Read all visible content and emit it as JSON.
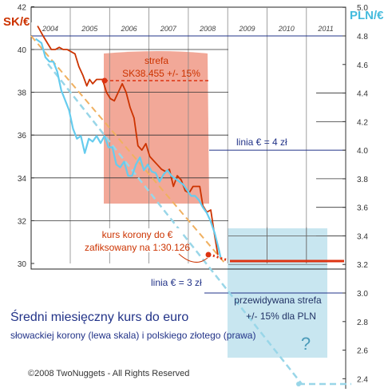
{
  "chart_data": {
    "type": "line",
    "title": "Średni miesięczny kurs do euro",
    "subtitle": "słowackiej korony (lewa skala) i polskiego złotego (prawa)",
    "copyright": "©2008 TwoNuggets - All Rights Reserved",
    "left_axis": {
      "label": "SK/€",
      "ticks": [
        30,
        32,
        34,
        36,
        38,
        40,
        42
      ],
      "range": [
        29,
        42
      ]
    },
    "right_axis": {
      "label": "PLN/€",
      "ticks": [
        2.4,
        2.6,
        2.8,
        3.0,
        3.2,
        3.4,
        3.6,
        3.8,
        4.0,
        4.2,
        4.4,
        4.6,
        4.8,
        5.0
      ],
      "range": [
        2.4,
        5.0
      ]
    },
    "x_axis": {
      "ticks": [
        "2004",
        "2005",
        "2006",
        "2007",
        "2008",
        "2009",
        "2010",
        "2011"
      ]
    },
    "annotations": {
      "strefa_title": "strefa",
      "strefa_value": "SK38.455  +/- 15%",
      "linia_4": "linia € = 4 zł",
      "linia_3": "linia € = 3 zł",
      "kurs_line1": "kurs korony do €",
      "kurs_line2": "zafiksowany na 1:30.126",
      "przew_line1": "przewidywana strefa",
      "przew_line2": "+/- 15% dla PLN",
      "question": "?"
    },
    "series": [
      {
        "axis": "left",
        "color": "#cc3300",
        "points": [
          [
            2003.8,
            41.1
          ],
          [
            2003.95,
            40.6
          ],
          [
            2004.05,
            40.3
          ],
          [
            2004.15,
            40.0
          ],
          [
            2004.25,
            40.0
          ],
          [
            2004.35,
            40.1
          ],
          [
            2004.45,
            40.0
          ],
          [
            2004.55,
            40.0
          ],
          [
            2004.65,
            39.9
          ],
          [
            2004.75,
            39.8
          ],
          [
            2004.85,
            39.2
          ],
          [
            2004.95,
            38.8
          ],
          [
            2005.05,
            38.3
          ],
          [
            2005.12,
            38.6
          ],
          [
            2005.2,
            38.4
          ],
          [
            2005.3,
            38.6
          ],
          [
            2005.45,
            38.6
          ],
          [
            2005.55,
            38.0
          ],
          [
            2005.65,
            37.7
          ],
          [
            2005.75,
            37.6
          ],
          [
            2005.85,
            38.0
          ],
          [
            2005.95,
            38.4
          ],
          [
            2006.05,
            38.0
          ],
          [
            2006.15,
            37.3
          ],
          [
            2006.25,
            36.8
          ],
          [
            2006.35,
            35.5
          ],
          [
            2006.45,
            35.3
          ],
          [
            2006.55,
            35.6
          ],
          [
            2006.65,
            35.0
          ],
          [
            2006.75,
            34.8
          ],
          [
            2006.85,
            34.6
          ],
          [
            2006.95,
            34.4
          ],
          [
            2007.05,
            34.3
          ],
          [
            2007.15,
            34.4
          ],
          [
            2007.25,
            33.6
          ],
          [
            2007.35,
            34.1
          ],
          [
            2007.45,
            33.9
          ],
          [
            2007.55,
            33.4
          ],
          [
            2007.65,
            33.3
          ],
          [
            2007.75,
            33.6
          ],
          [
            2007.85,
            33.6
          ],
          [
            2007.92,
            33.6
          ],
          [
            2008.0,
            32.7
          ],
          [
            2008.1,
            32.4
          ],
          [
            2008.2,
            32.5
          ],
          [
            2008.3,
            31.3
          ],
          [
            2008.38,
            30.4
          ]
        ]
      },
      {
        "axis": "right",
        "color": "#66ccee",
        "points": [
          [
            2003.75,
            4.78
          ],
          [
            2003.9,
            4.75
          ],
          [
            2004.0,
            4.65
          ],
          [
            2004.1,
            4.62
          ],
          [
            2004.2,
            4.62
          ],
          [
            2004.3,
            4.55
          ],
          [
            2004.4,
            4.42
          ],
          [
            2004.5,
            4.35
          ],
          [
            2004.6,
            4.28
          ],
          [
            2004.7,
            4.15
          ],
          [
            2004.8,
            4.08
          ],
          [
            2004.9,
            4.1
          ],
          [
            2005.0,
            3.98
          ],
          [
            2005.1,
            4.08
          ],
          [
            2005.2,
            4.06
          ],
          [
            2005.3,
            4.1
          ],
          [
            2005.4,
            4.05
          ],
          [
            2005.5,
            4.1
          ],
          [
            2005.6,
            4.02
          ],
          [
            2005.7,
            4.02
          ],
          [
            2005.8,
            3.9
          ],
          [
            2005.9,
            3.88
          ],
          [
            2006.0,
            3.92
          ],
          [
            2006.1,
            3.82
          ],
          [
            2006.2,
            3.82
          ],
          [
            2006.3,
            3.9
          ],
          [
            2006.4,
            3.95
          ],
          [
            2006.5,
            3.86
          ],
          [
            2006.6,
            3.9
          ],
          [
            2006.7,
            3.85
          ],
          [
            2006.8,
            3.84
          ],
          [
            2006.9,
            3.78
          ],
          [
            2007.0,
            3.83
          ],
          [
            2007.1,
            3.86
          ],
          [
            2007.2,
            3.82
          ],
          [
            2007.3,
            3.8
          ],
          [
            2007.4,
            3.78
          ],
          [
            2007.5,
            3.76
          ],
          [
            2007.6,
            3.72
          ],
          [
            2007.7,
            3.68
          ],
          [
            2007.8,
            3.68
          ],
          [
            2007.9,
            3.65
          ],
          [
            2008.0,
            3.6
          ],
          [
            2008.1,
            3.56
          ],
          [
            2008.2,
            3.5
          ],
          [
            2008.3,
            3.42
          ],
          [
            2008.4,
            3.31
          ],
          [
            2008.45,
            3.25
          ]
        ]
      }
    ],
    "fixed_rate": {
      "value": 30.126,
      "from": 2008.4,
      "to": 2011.4,
      "color": "#dd3311"
    },
    "strefa_band": {
      "center": 38.455,
      "from": 2005.45,
      "to": 2008.0,
      "color": "#f0a090"
    },
    "pln_band": {
      "from": 2008.5,
      "to": 2011.0,
      "top": 3.46,
      "bottom": 2.56,
      "color": "#c8e6f0"
    },
    "ref_lines": [
      {
        "name": "linia-4",
        "axis": "right",
        "value": 4.0
      },
      {
        "name": "linia-3",
        "axis": "right",
        "value": 3.0
      },
      {
        "name": "top-48",
        "axis": "right",
        "value": 4.8
      }
    ]
  }
}
